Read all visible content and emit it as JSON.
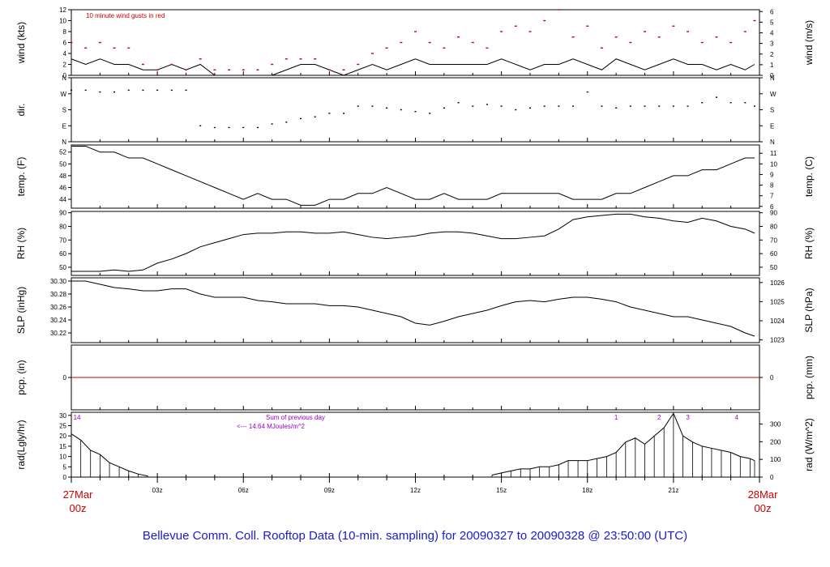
{
  "footer": {
    "title": "Bellevue Comm. Coll. Rooftop Data (10-min. sampling) for 20090327  to  20090328 @ 23:50:00  (UTC)",
    "start_date": "27Mar",
    "start_time": "00z",
    "end_date": "28Mar",
    "end_time": "00z",
    "tick_labels": [
      "03z",
      "06z",
      "09z",
      "12z",
      "15z",
      "18z",
      "21z"
    ]
  },
  "colors": {
    "axis": "#000000",
    "gust": "#cc0000",
    "precip_line": "#cc0000",
    "radiation_notes": "#9900cc",
    "footer_text": "#1a1acc",
    "date_labels": "#cc0000"
  },
  "chart_data": [
    {
      "type": "line",
      "panel": "wind",
      "ylabel_left": "wind (kts)",
      "ylabel_right": "wind (m/s)",
      "ylim": [
        0,
        12
      ],
      "yticks_left": [
        "0",
        "2",
        "4",
        "6",
        "8",
        "10",
        "12"
      ],
      "yticks_right": [
        "0",
        "1",
        "2",
        "3",
        "4",
        "5",
        "6"
      ],
      "annotation": "10  minute wind gusts in red",
      "x_hours": [
        0,
        0.5,
        1,
        1.5,
        2,
        2.5,
        3,
        3.5,
        4,
        4.5,
        5,
        5.5,
        6,
        6.5,
        7,
        7.5,
        8,
        8.5,
        9,
        9.5,
        10,
        10.5,
        11,
        11.5,
        12,
        12.5,
        13,
        13.5,
        14,
        14.5,
        15,
        15.5,
        16,
        16.5,
        17,
        17.5,
        18,
        18.5,
        19,
        19.5,
        20,
        20.5,
        21,
        21.5,
        22,
        22.5,
        23,
        23.5,
        23.83
      ],
      "series": [
        {
          "name": "wind",
          "values": [
            3,
            2,
            3,
            2,
            2,
            1,
            1,
            2,
            1,
            2,
            0,
            0,
            0,
            0,
            0,
            1,
            2,
            2,
            1,
            0,
            1,
            2,
            1,
            2,
            3,
            2,
            2,
            2,
            2,
            2,
            3,
            2,
            1,
            2,
            2,
            3,
            2,
            1,
            3,
            2,
            1,
            2,
            3,
            2,
            2,
            1,
            2,
            1,
            2
          ]
        },
        {
          "name": "gusts",
          "values": [
            6,
            5,
            6,
            5,
            5,
            2,
            1,
            2,
            1,
            3,
            1,
            1,
            1,
            1,
            2,
            3,
            3,
            3,
            1,
            1,
            2,
            4,
            5,
            6,
            8,
            6,
            5,
            7,
            6,
            5,
            8,
            9,
            8,
            10,
            12,
            7,
            9,
            5,
            7,
            6,
            8,
            7,
            9,
            8,
            6,
            7,
            6,
            8,
            10
          ]
        }
      ]
    },
    {
      "type": "scatter",
      "panel": "dir.",
      "ylabel_left": "dir.",
      "categories_y": [
        "N",
        "E",
        "S",
        "W",
        "N"
      ],
      "yticks": [
        "N",
        "W",
        "S",
        "E",
        "N"
      ],
      "x_hours": [
        0,
        0.5,
        1,
        1.5,
        2,
        2.5,
        3,
        3.5,
        4,
        4.5,
        5,
        5.5,
        6,
        6.5,
        7,
        7.5,
        8,
        8.5,
        9,
        9.5,
        10,
        10.5,
        11,
        11.5,
        12,
        12.5,
        13,
        13.5,
        14,
        14.5,
        15,
        15.5,
        16,
        16.5,
        17,
        17.5,
        18,
        18.5,
        19,
        19.5,
        20,
        20.5,
        21,
        21.5,
        22,
        22.5,
        23,
        23.5,
        23.83
      ],
      "values": [
        290,
        290,
        280,
        280,
        290,
        290,
        290,
        290,
        290,
        90,
        80,
        80,
        80,
        80,
        100,
        110,
        130,
        140,
        160,
        160,
        200,
        200,
        190,
        180,
        170,
        160,
        190,
        220,
        200,
        210,
        200,
        180,
        190,
        200,
        200,
        200,
        280,
        200,
        190,
        200,
        200,
        200,
        200,
        200,
        220,
        250,
        220,
        220,
        200
      ]
    },
    {
      "type": "line",
      "panel": "temp. (F)",
      "ylabel_left": "temp. (F)",
      "ylabel_right": "temp. (C)",
      "ylim": [
        42,
        53
      ],
      "yticks_left": [
        "44",
        "46",
        "48",
        "50",
        "52"
      ],
      "yticks_right": [
        "6",
        "7",
        "8",
        "9",
        "10",
        "11"
      ],
      "x_hours": [
        0,
        0.5,
        1,
        1.5,
        2,
        2.5,
        3,
        3.5,
        4,
        4.5,
        5,
        5.5,
        6,
        6.5,
        7,
        7.5,
        8,
        8.5,
        9,
        9.5,
        10,
        10.5,
        11,
        11.5,
        12,
        12.5,
        13,
        13.5,
        14,
        14.5,
        15,
        15.5,
        16,
        16.5,
        17,
        17.5,
        18,
        18.5,
        19,
        19.5,
        20,
        20.5,
        21,
        21.5,
        22,
        22.5,
        23,
        23.5,
        23.83
      ],
      "values": [
        53,
        53,
        52,
        52,
        51,
        51,
        50,
        49,
        48,
        47,
        46,
        45,
        44,
        45,
        44,
        44,
        43,
        43,
        44,
        44,
        45,
        45,
        46,
        45,
        44,
        44,
        45,
        44,
        44,
        44,
        45,
        45,
        45,
        45,
        45,
        44,
        44,
        44,
        45,
        45,
        46,
        47,
        48,
        48,
        49,
        49,
        50,
        51,
        51
      ]
    },
    {
      "type": "line",
      "panel": "RH (%)",
      "ylabel_left": "RH (%)",
      "ylabel_right": "RH (%)",
      "ylim": [
        45,
        90
      ],
      "yticks_left": [
        "50",
        "60",
        "70",
        "80",
        "90"
      ],
      "yticks_right": [
        "50",
        "60",
        "70",
        "80",
        "90"
      ],
      "x_hours": [
        0,
        0.5,
        1,
        1.5,
        2,
        2.5,
        3,
        3.5,
        4,
        4.5,
        5,
        5.5,
        6,
        6.5,
        7,
        7.5,
        8,
        8.5,
        9,
        9.5,
        10,
        10.5,
        11,
        11.5,
        12,
        12.5,
        13,
        13.5,
        14,
        14.5,
        15,
        15.5,
        16,
        16.5,
        17,
        17.5,
        18,
        18.5,
        19,
        19.5,
        20,
        20.5,
        21,
        21.5,
        22,
        22.5,
        23,
        23.5,
        23.83
      ],
      "values": [
        47,
        47,
        47,
        48,
        47,
        48,
        53,
        56,
        60,
        65,
        68,
        71,
        74,
        75,
        75,
        76,
        76,
        75,
        75,
        76,
        74,
        72,
        71,
        72,
        73,
        75,
        76,
        76,
        75,
        73,
        71,
        71,
        72,
        73,
        78,
        85,
        87,
        88,
        89,
        89,
        87,
        86,
        84,
        83,
        86,
        84,
        80,
        78,
        75
      ]
    },
    {
      "type": "line",
      "panel": "SLP (inHg)",
      "ylabel_left": "SLP (inHg)",
      "ylabel_right": "SLP (hPa)",
      "ylim": [
        30.205,
        30.305
      ],
      "yticks_left": [
        "30.22",
        "30.24",
        "30.26",
        "30.28",
        "30.30"
      ],
      "yticks_right": [
        "1023",
        "1024",
        "1025",
        "1026"
      ],
      "x_hours": [
        0,
        0.5,
        1,
        1.5,
        2,
        2.5,
        3,
        3.5,
        4,
        4.5,
        5,
        5.5,
        6,
        6.5,
        7,
        7.5,
        8,
        8.5,
        9,
        9.5,
        10,
        10.5,
        11,
        11.5,
        12,
        12.5,
        13,
        13.5,
        14,
        14.5,
        15,
        15.5,
        16,
        16.5,
        17,
        17.5,
        18,
        18.5,
        19,
        19.5,
        20,
        20.5,
        21,
        21.5,
        22,
        22.5,
        23,
        23.5,
        23.83
      ],
      "values": [
        30.3,
        30.3,
        30.295,
        30.29,
        30.288,
        30.285,
        30.285,
        30.288,
        30.288,
        30.28,
        30.275,
        30.275,
        30.275,
        30.27,
        30.268,
        30.265,
        30.265,
        30.265,
        30.262,
        30.262,
        30.26,
        30.255,
        30.25,
        30.245,
        30.235,
        30.232,
        30.238,
        30.245,
        30.25,
        30.255,
        30.262,
        30.268,
        30.27,
        30.268,
        30.272,
        30.275,
        30.275,
        30.272,
        30.268,
        30.26,
        30.255,
        30.25,
        30.245,
        30.245,
        30.24,
        30.235,
        30.23,
        30.22,
        30.215
      ]
    },
    {
      "type": "line",
      "panel": "pcp. (in)",
      "ylabel_left": "pcp. (in)",
      "ylabel_right": "pcp. (mm)",
      "yticks_left": [
        "0"
      ],
      "yticks_right": [
        "0"
      ],
      "x_hours": [
        0,
        23.83
      ],
      "values": [
        0,
        0
      ]
    },
    {
      "type": "bar",
      "panel": "rad",
      "ylabel_left": "rad(Lgly/hr)",
      "ylabel_right": "rad (W/m^2)",
      "ylim": [
        0,
        31
      ],
      "yticks_left": [
        "0",
        "5",
        "10",
        "15",
        "20",
        "25",
        "30"
      ],
      "yticks_right": [
        "0",
        "100",
        "200",
        "300"
      ],
      "notes": [
        "Sum of previous day",
        "<--- 14.64 MJoules/m^2"
      ],
      "markers": [
        {
          "label": "14",
          "hour": 0.2
        },
        {
          "label": "1",
          "hour": 19.0
        },
        {
          "label": "2",
          "hour": 20.5
        },
        {
          "label": "3",
          "hour": 21.5
        },
        {
          "label": "4",
          "hour": 23.2
        }
      ],
      "x_hours": [
        0,
        0.33,
        0.67,
        1,
        1.33,
        1.67,
        2,
        2.33,
        2.67,
        14.67,
        15,
        15.33,
        15.67,
        16,
        16.33,
        16.67,
        17,
        17.33,
        17.67,
        18,
        18.33,
        18.67,
        19,
        19.33,
        19.67,
        20,
        20.33,
        20.67,
        21,
        21.33,
        21.67,
        22,
        22.33,
        22.67,
        23,
        23.33,
        23.67,
        23.83
      ],
      "values": [
        21,
        18,
        13,
        11,
        7,
        5,
        3,
        1.5,
        0.5,
        1,
        2,
        3,
        4,
        4,
        5,
        5,
        6,
        8,
        8,
        8,
        9,
        10,
        12,
        17,
        19,
        16,
        20,
        24,
        31,
        20,
        17,
        15,
        14,
        13,
        12,
        10,
        9,
        8
      ]
    }
  ]
}
